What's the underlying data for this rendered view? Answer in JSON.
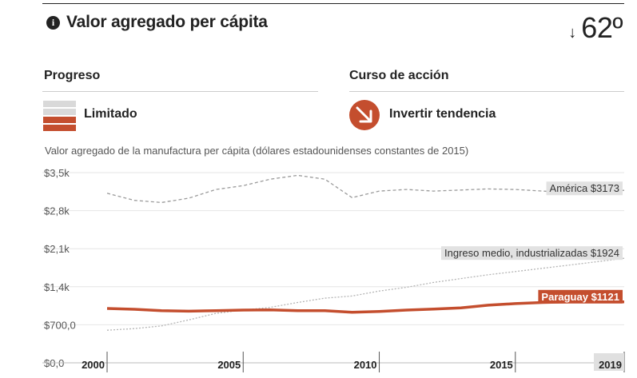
{
  "header": {
    "title": "Valor agregado per cápita",
    "info_glyph": "i",
    "rank_arrow": "↓",
    "rank": "62º"
  },
  "progress": {
    "heading": "Progreso",
    "status": "Limitado",
    "icon": "progress-bars-icon"
  },
  "action": {
    "heading": "Curso de acción",
    "status": "Invertir tendencia",
    "icon": "arrow-down-right-icon"
  },
  "colors": {
    "accent": "#c44e2e",
    "muted": "#d9d9d9",
    "america_line": "#9a9a9a",
    "ingreso_line": "#b5b5b5"
  },
  "chart_data": {
    "type": "line",
    "title": "Valor agregado de la manufactura per cápita (dólares estadounidenses constantes de 2015)",
    "x": [
      2000,
      2001,
      2002,
      2003,
      2004,
      2005,
      2006,
      2007,
      2008,
      2009,
      2010,
      2011,
      2012,
      2013,
      2014,
      2015,
      2016,
      2017,
      2018,
      2019
    ],
    "xticks": [
      "2000",
      "2005",
      "2010",
      "2015",
      "2019"
    ],
    "xtick_values": [
      2000,
      2005,
      2010,
      2015,
      2019
    ],
    "yticks": [
      "$0,0",
      "$700,0",
      "$1,4k",
      "$2,1k",
      "$2,8k",
      "$3,5k"
    ],
    "ytick_values": [
      0,
      700,
      1400,
      2100,
      2800,
      3500
    ],
    "xlim": [
      2000,
      2019
    ],
    "ylim": [
      0,
      3500
    ],
    "grid": true,
    "series": [
      {
        "name": "América",
        "label": "América $3173",
        "values": [
          3120,
          2990,
          2950,
          3030,
          3190,
          3260,
          3380,
          3450,
          3380,
          3040,
          3160,
          3190,
          3160,
          3180,
          3200,
          3190,
          3160,
          3130,
          3150,
          3173
        ]
      },
      {
        "name": "Ingreso medio, industrializadas",
        "label": "Ingreso medio, industrializadas $1924",
        "values": [
          600,
          630,
          680,
          790,
          910,
          970,
          1020,
          1110,
          1190,
          1230,
          1320,
          1390,
          1480,
          1550,
          1620,
          1680,
          1740,
          1800,
          1860,
          1924
        ]
      },
      {
        "name": "Paraguay",
        "label": "Paraguay $1121",
        "values": [
          1000,
          985,
          960,
          950,
          960,
          970,
          975,
          960,
          960,
          930,
          945,
          970,
          990,
          1010,
          1060,
          1090,
          1110,
          1121,
          1121,
          1121
        ]
      }
    ]
  }
}
